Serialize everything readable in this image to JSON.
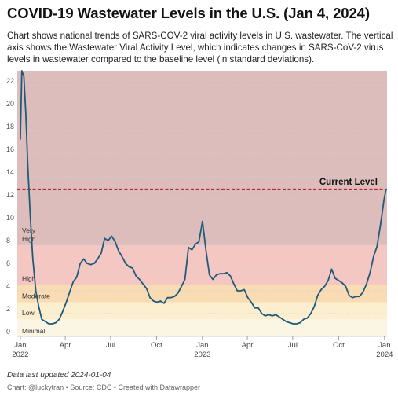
{
  "title": "COVID-19 Wastewater Levels in the U.S. (Jan 4, 2024)",
  "subtitle": "Chart shows national trends of SARS-COV-2 viral activity levels in U.S. wastewater. The vertical axis shows the Wastewater Viral Activity Level, which indicates changes in SARS-CoV-2 virus levels in wastewater compared to the baseline level (in standard deviations).",
  "footer": {
    "updated": "Data last updated 2024-01-04",
    "credit": "Chart: @luckytran • Source: CDC • Created with Datawrapper"
  },
  "chart_data": {
    "type": "line",
    "title": "COVID-19 Wastewater Levels in the U.S. (Jan 4, 2024)",
    "xlabel": "",
    "ylabel": "",
    "ylim": [
      0,
      23.3
    ],
    "yticks": [
      0,
      2,
      4,
      6,
      8,
      10,
      12,
      14,
      16,
      18,
      20,
      22
    ],
    "grid": true,
    "x_ticks": [
      {
        "label": "Jan",
        "sub": "2022",
        "date": "2022-01-01"
      },
      {
        "label": "Apr",
        "sub": "",
        "date": "2022-04-01"
      },
      {
        "label": "Jul",
        "sub": "",
        "date": "2022-07-01"
      },
      {
        "label": "Oct",
        "sub": "",
        "date": "2022-10-01"
      },
      {
        "label": "Jan",
        "sub": "2023",
        "date": "2023-01-01"
      },
      {
        "label": "Apr",
        "sub": "",
        "date": "2023-04-01"
      },
      {
        "label": "Jul",
        "sub": "",
        "date": "2023-07-01"
      },
      {
        "label": "Oct",
        "sub": "",
        "date": "2023-10-01"
      },
      {
        "label": "Jan",
        "sub": "2024",
        "date": "2024-01-01"
      }
    ],
    "xlim": [
      "2021-12-29",
      "2024-01-06"
    ],
    "bands": [
      {
        "label": "Minimal",
        "from": 0,
        "to": 1.5,
        "color": "#fbf5e3"
      },
      {
        "label": "Low",
        "from": 1.5,
        "to": 3,
        "color": "#fbefd0"
      },
      {
        "label": "Moderate",
        "from": 3,
        "to": 4.5,
        "color": "#f9dbb4"
      },
      {
        "label": "High",
        "from": 4.5,
        "to": 8,
        "color": "#f4c7c3"
      },
      {
        "label": "Very High",
        "from": 8,
        "to": 23.3,
        "color": "#ddbdbc"
      }
    ],
    "reference_line": {
      "label": "Current Level",
      "value": 12.9,
      "color": "#b5121b"
    },
    "series": [
      {
        "color": "#1f5a7a",
        "points": [
          [
            "2022-01-01",
            17.3
          ],
          [
            "2022-01-04",
            23.3
          ],
          [
            "2022-01-08",
            22.8
          ],
          [
            "2022-01-12",
            19.5
          ],
          [
            "2022-01-16",
            15.0
          ],
          [
            "2022-01-21",
            10.5
          ],
          [
            "2022-01-26",
            6.8
          ],
          [
            "2022-02-01",
            4.0
          ],
          [
            "2022-02-07",
            2.6
          ],
          [
            "2022-02-13",
            1.5
          ],
          [
            "2022-02-20",
            1.3
          ],
          [
            "2022-02-27",
            1.1
          ],
          [
            "2022-03-06",
            1.1
          ],
          [
            "2022-03-13",
            1.2
          ],
          [
            "2022-03-20",
            1.5
          ],
          [
            "2022-03-27",
            2.2
          ],
          [
            "2022-04-03",
            3.0
          ],
          [
            "2022-04-10",
            3.9
          ],
          [
            "2022-04-17",
            4.8
          ],
          [
            "2022-04-24",
            5.2
          ],
          [
            "2022-05-01",
            6.4
          ],
          [
            "2022-05-08",
            6.8
          ],
          [
            "2022-05-15",
            6.4
          ],
          [
            "2022-05-22",
            6.3
          ],
          [
            "2022-05-29",
            6.4
          ],
          [
            "2022-06-05",
            6.8
          ],
          [
            "2022-06-12",
            7.3
          ],
          [
            "2022-06-19",
            8.6
          ],
          [
            "2022-06-26",
            8.4
          ],
          [
            "2022-07-03",
            8.8
          ],
          [
            "2022-07-10",
            8.3
          ],
          [
            "2022-07-17",
            7.5
          ],
          [
            "2022-07-24",
            7.0
          ],
          [
            "2022-07-31",
            6.4
          ],
          [
            "2022-08-07",
            6.1
          ],
          [
            "2022-08-14",
            6.0
          ],
          [
            "2022-08-21",
            5.3
          ],
          [
            "2022-08-28",
            5.0
          ],
          [
            "2022-09-04",
            4.6
          ],
          [
            "2022-09-11",
            4.2
          ],
          [
            "2022-09-18",
            3.4
          ],
          [
            "2022-09-25",
            3.1
          ],
          [
            "2022-10-02",
            3.0
          ],
          [
            "2022-10-09",
            3.1
          ],
          [
            "2022-10-16",
            2.9
          ],
          [
            "2022-10-23",
            3.4
          ],
          [
            "2022-10-30",
            3.4
          ],
          [
            "2022-11-06",
            3.5
          ],
          [
            "2022-11-13",
            3.8
          ],
          [
            "2022-11-20",
            4.4
          ],
          [
            "2022-11-27",
            5.0
          ],
          [
            "2022-12-04",
            7.8
          ],
          [
            "2022-12-11",
            7.6
          ],
          [
            "2022-12-18",
            8.1
          ],
          [
            "2022-12-25",
            8.3
          ],
          [
            "2023-01-01",
            10.1
          ],
          [
            "2023-01-08",
            7.6
          ],
          [
            "2023-01-15",
            5.4
          ],
          [
            "2023-01-22",
            5.0
          ],
          [
            "2023-01-29",
            5.4
          ],
          [
            "2023-02-05",
            5.5
          ],
          [
            "2023-02-12",
            5.5
          ],
          [
            "2023-02-19",
            5.6
          ],
          [
            "2023-02-26",
            5.3
          ],
          [
            "2023-03-05",
            4.6
          ],
          [
            "2023-03-12",
            4.0
          ],
          [
            "2023-03-19",
            4.0
          ],
          [
            "2023-03-26",
            4.1
          ],
          [
            "2023-04-02",
            3.4
          ],
          [
            "2023-04-09",
            3.0
          ],
          [
            "2023-04-16",
            2.5
          ],
          [
            "2023-04-23",
            2.5
          ],
          [
            "2023-04-30",
            2.0
          ],
          [
            "2023-05-07",
            1.8
          ],
          [
            "2023-05-14",
            1.9
          ],
          [
            "2023-05-21",
            1.8
          ],
          [
            "2023-05-28",
            1.9
          ],
          [
            "2023-06-04",
            1.7
          ],
          [
            "2023-06-11",
            1.5
          ],
          [
            "2023-06-18",
            1.3
          ],
          [
            "2023-06-25",
            1.2
          ],
          [
            "2023-07-02",
            1.1
          ],
          [
            "2023-07-09",
            1.1
          ],
          [
            "2023-07-16",
            1.2
          ],
          [
            "2023-07-23",
            1.5
          ],
          [
            "2023-07-30",
            1.6
          ],
          [
            "2023-08-06",
            2.0
          ],
          [
            "2023-08-13",
            2.6
          ],
          [
            "2023-08-20",
            3.6
          ],
          [
            "2023-08-27",
            4.1
          ],
          [
            "2023-09-03",
            4.4
          ],
          [
            "2023-09-10",
            4.9
          ],
          [
            "2023-09-17",
            5.9
          ],
          [
            "2023-09-24",
            5.1
          ],
          [
            "2023-10-01",
            4.9
          ],
          [
            "2023-10-08",
            4.7
          ],
          [
            "2023-10-15",
            4.4
          ],
          [
            "2023-10-22",
            3.6
          ],
          [
            "2023-10-29",
            3.4
          ],
          [
            "2023-11-05",
            3.5
          ],
          [
            "2023-11-12",
            3.5
          ],
          [
            "2023-11-19",
            3.9
          ],
          [
            "2023-11-26",
            4.6
          ],
          [
            "2023-12-03",
            5.6
          ],
          [
            "2023-12-10",
            7.0
          ],
          [
            "2023-12-17",
            7.9
          ],
          [
            "2023-12-24",
            9.8
          ],
          [
            "2023-12-31",
            12.0
          ],
          [
            "2024-01-04",
            12.9
          ]
        ]
      }
    ]
  }
}
